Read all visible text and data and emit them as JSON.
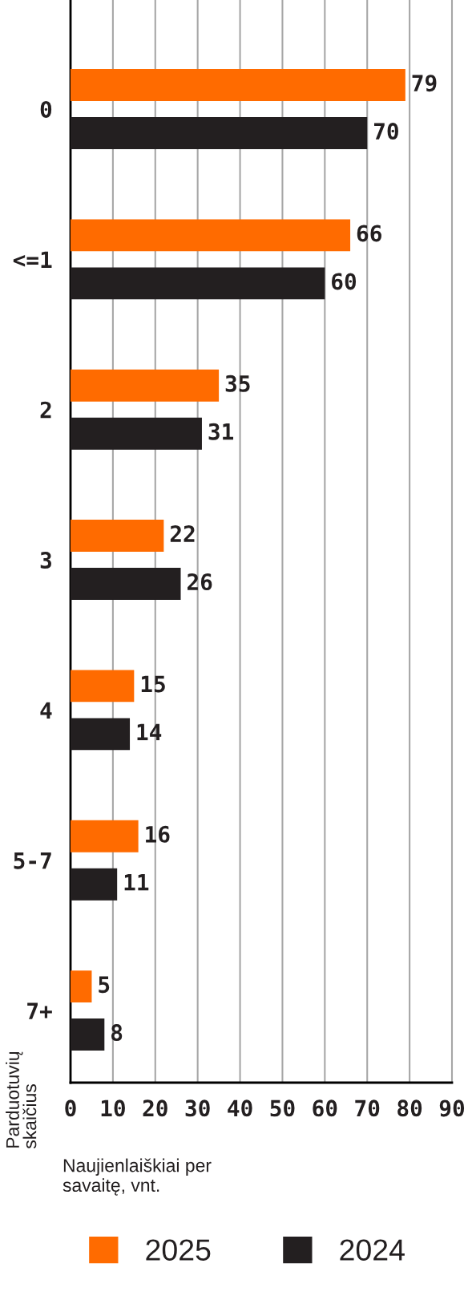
{
  "chart_data": {
    "type": "bar",
    "orientation": "horizontal",
    "categories": [
      "0",
      "<=1",
      "2",
      "3",
      "4",
      "5-7",
      "7+"
    ],
    "series": [
      {
        "name": "2025",
        "color": "#ff6b00",
        "values": [
          79,
          66,
          35,
          22,
          15,
          16,
          5
        ]
      },
      {
        "name": "2024",
        "color": "#231f20",
        "values": [
          70,
          60,
          31,
          26,
          14,
          11,
          8
        ]
      }
    ],
    "xlabel": "Naujienlaiškiai per\nsavaitę, vnt.",
    "ylabel": "Parduotuvių\nskaičius",
    "xlim": [
      0,
      90
    ],
    "xticks": [
      0,
      10,
      20,
      30,
      40,
      50,
      60,
      70,
      80,
      90
    ],
    "grid": "x",
    "legend": "bottom",
    "data_labels": true
  }
}
